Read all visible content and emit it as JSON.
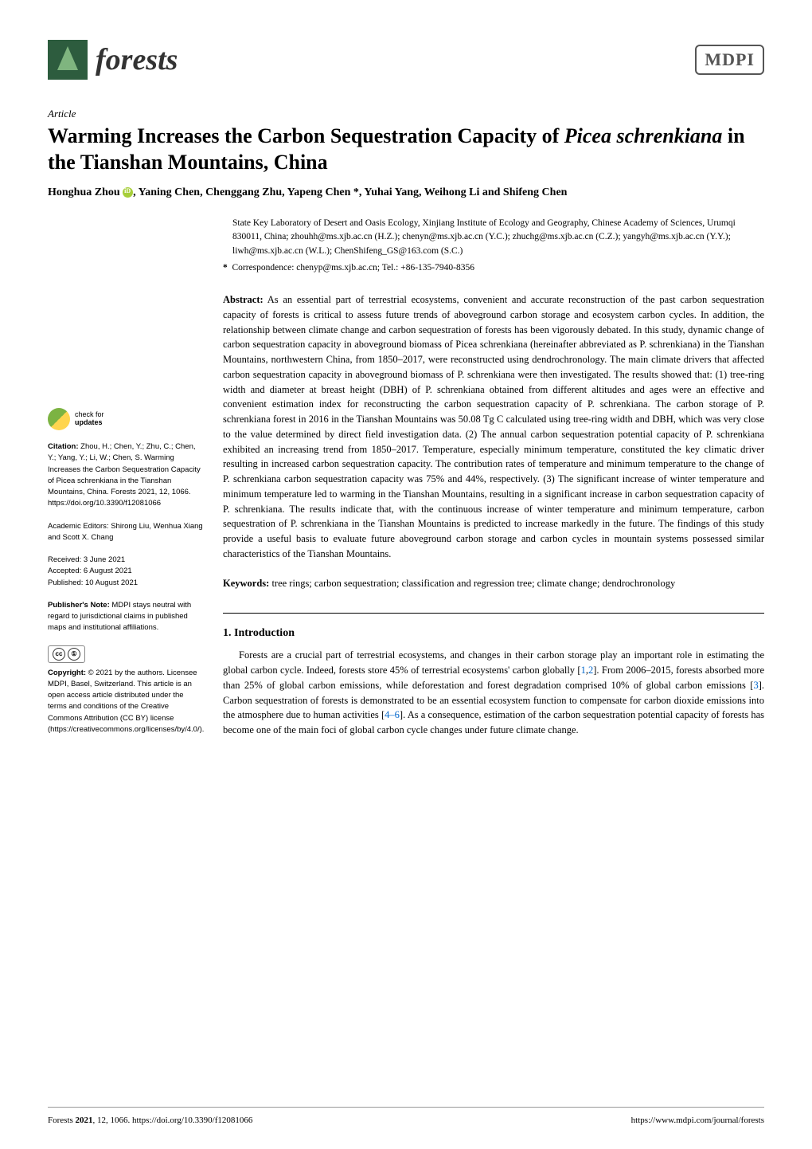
{
  "journal": {
    "name": "forests",
    "publisher": "MDPI"
  },
  "article": {
    "type": "Article",
    "title_pre": "Warming Increases the Carbon Sequestration Capacity of ",
    "title_italic": "Picea schrenkiana",
    "title_post": " in the Tianshan Mountains, China",
    "authors": "Honghua Zhou , Yaning Chen, Chenggang Zhu, Yapeng Chen *, Yuhai Yang, Weihong Li and Shifeng Chen",
    "affiliation": "State Key Laboratory of Desert and Oasis Ecology, Xinjiang Institute of Ecology and Geography, Chinese Academy of Sciences, Urumqi 830011, China; zhouhh@ms.xjb.ac.cn (H.Z.); chenyn@ms.xjb.ac.cn (Y.C.); zhuchg@ms.xjb.ac.cn (C.Z.); yangyh@ms.xjb.ac.cn (Y.Y.); liwh@ms.xjb.ac.cn (W.L.); ChenShifeng_GS@163.com (S.C.)",
    "correspondence_label": "*",
    "correspondence": "Correspondence: chenyp@ms.xjb.ac.cn; Tel.: +86-135-7940-8356"
  },
  "abstract": {
    "label": "Abstract:",
    "text": " As an essential part of terrestrial ecosystems, convenient and accurate reconstruction of the past carbon sequestration capacity of forests is critical to assess future trends of aboveground carbon storage and ecosystem carbon cycles. In addition, the relationship between climate change and carbon sequestration of forests has been vigorously debated. In this study, dynamic change of carbon sequestration capacity in aboveground biomass of Picea schrenkiana (hereinafter abbreviated as P. schrenkiana) in the Tianshan Mountains, northwestern China, from 1850–2017, were reconstructed using dendrochronology. The main climate drivers that affected carbon sequestration capacity in aboveground biomass of P. schrenkiana were then investigated. The results showed that: (1) tree-ring width and diameter at breast height (DBH) of P. schrenkiana obtained from different altitudes and ages were an effective and convenient estimation index for reconstructing the carbon sequestration capacity of P. schrenkiana. The carbon storage of P. schrenkiana forest in 2016 in the Tianshan Mountains was 50.08 Tg C calculated using tree-ring width and DBH, which was very close to the value determined by direct field investigation data. (2) The annual carbon sequestration potential capacity of P. schrenkiana exhibited an increasing trend from 1850–2017. Temperature, especially minimum temperature, constituted the key climatic driver resulting in increased carbon sequestration capacity. The contribution rates of temperature and minimum temperature to the change of P. schrenkiana carbon sequestration capacity was 75% and 44%, respectively. (3) The significant increase of winter temperature and minimum temperature led to warming in the Tianshan Mountains, resulting in a significant increase in carbon sequestration capacity of P. schrenkiana. The results indicate that, with the continuous increase of winter temperature and minimum temperature, carbon sequestration of P. schrenkiana in the Tianshan Mountains is predicted to increase markedly in the future. The findings of this study provide a useful basis to evaluate future aboveground carbon storage and carbon cycles in mountain systems possessed similar characteristics of the Tianshan Mountains."
  },
  "keywords": {
    "label": "Keywords:",
    "text": " tree rings; carbon sequestration; classification and regression tree; climate change; dendrochronology"
  },
  "intro": {
    "heading": "1. Introduction",
    "body": "Forests are a crucial part of terrestrial ecosystems, and changes in their carbon storage play an important role in estimating the global carbon cycle. Indeed, forests store 45% of terrestrial ecosystems' carbon globally [1,2]. From 2006–2015, forests absorbed more than 25% of global carbon emissions, while deforestation and forest degradation comprised 10% of global carbon emissions [3]. Carbon sequestration of forests is demonstrated to be an essential ecosystem function to compensate for carbon dioxide emissions into the atmosphere due to human activities [4–6]. As a consequence, estimation of the carbon sequestration potential capacity of forests has become one of the main foci of global carbon cycle changes under future climate change."
  },
  "sidebar": {
    "check_updates": "check for updates",
    "citation_label": "Citation:",
    "citation": " Zhou, H.; Chen, Y.; Zhu, C.; Chen, Y.; Yang, Y.; Li, W.; Chen, S. Warming Increases the Carbon Sequestration Capacity of Picea schrenkiana in the Tianshan Mountains, China. Forests 2021, 12, 1066. https://doi.org/10.3390/f12081066",
    "editors_label": "Academic Editors:",
    "editors": " Shirong Liu, Wenhua Xiang and Scott X. Chang",
    "received": "Received: 3 June 2021",
    "accepted": "Accepted: 6 August 2021",
    "published": "Published: 10 August 2021",
    "publisher_note_label": "Publisher's Note:",
    "publisher_note": " MDPI stays neutral with regard to jurisdictional claims in published maps and institutional affiliations.",
    "copyright_label": "Copyright:",
    "copyright": " © 2021 by the authors. Licensee MDPI, Basel, Switzerland. This article is an open access article distributed under the terms and conditions of the Creative Commons Attribution (CC BY) license (https://creativecommons.org/licenses/by/4.0/)."
  },
  "footer": {
    "left": "Forests 2021, 12, 1066. https://doi.org/10.3390/f12081066",
    "right": "https://www.mdpi.com/journal/forests"
  }
}
